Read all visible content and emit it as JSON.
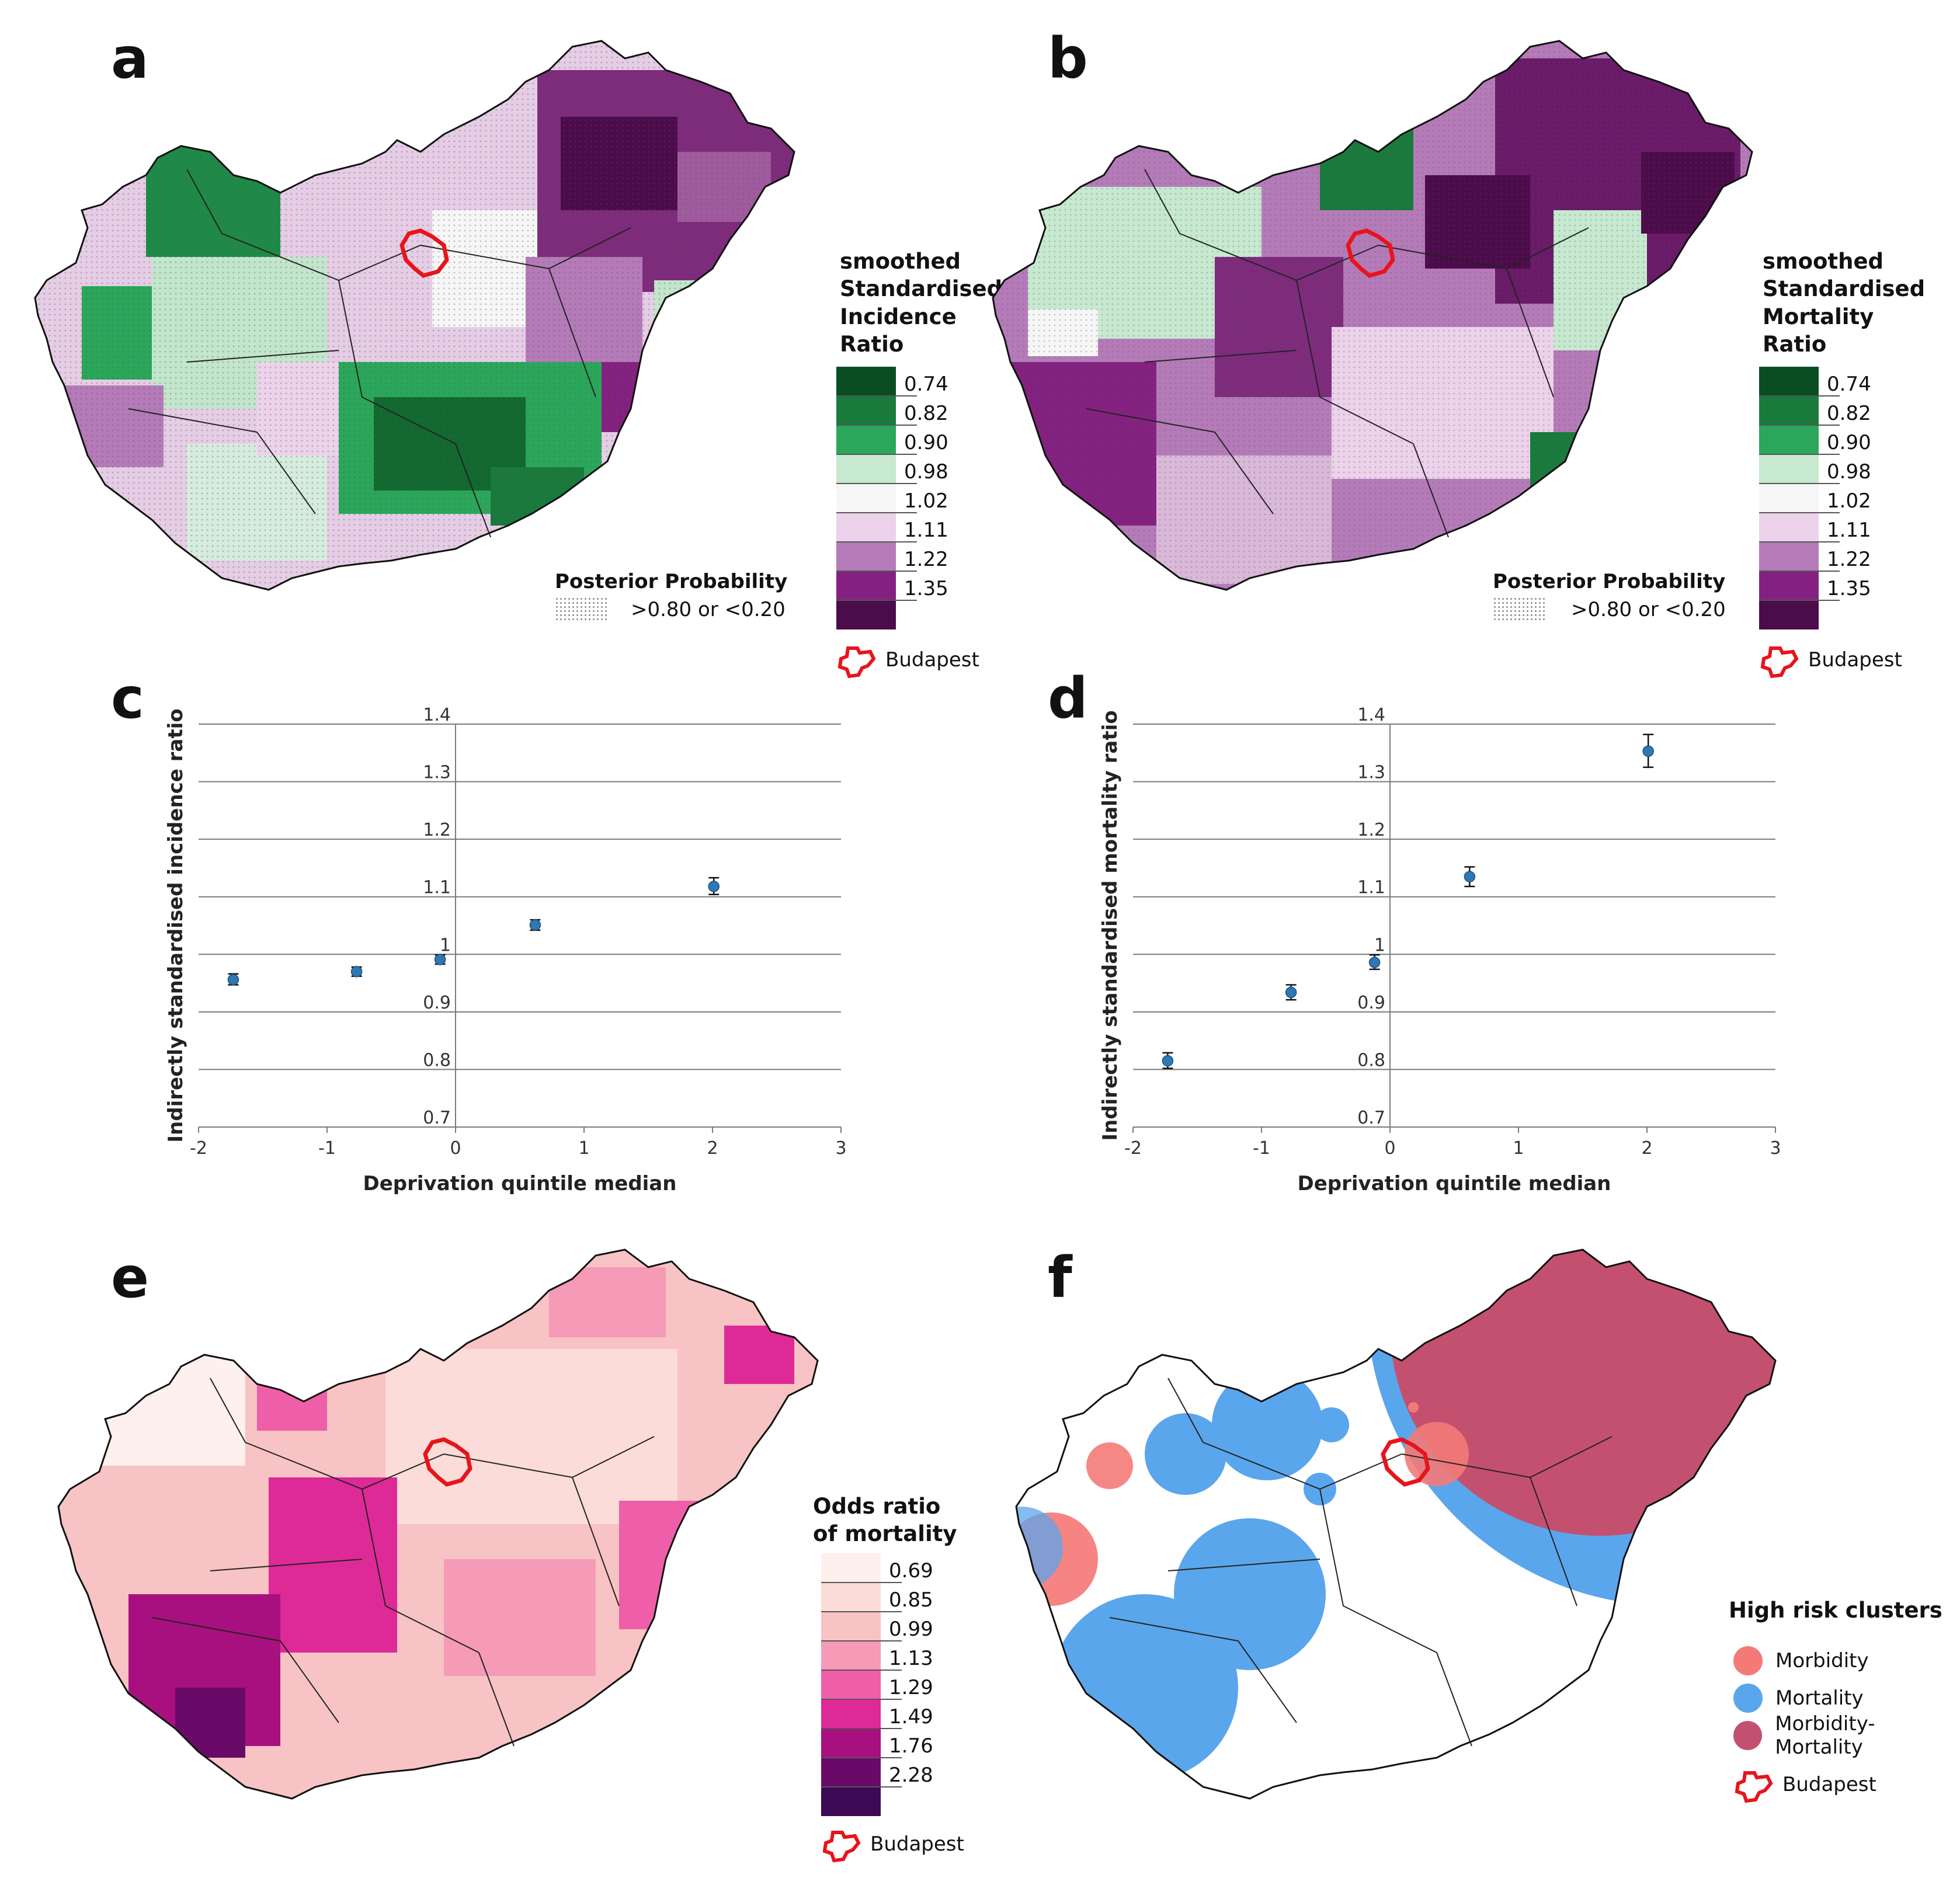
{
  "panels": {
    "a": {
      "label": "a",
      "legend_title": [
        "smoothed",
        "Standardised",
        "Incidence",
        "Ratio"
      ],
      "legend_ticks": [
        "0.74",
        "0.82",
        "0.90",
        "0.98",
        "1.02",
        "1.11",
        "1.22",
        "1.35"
      ],
      "legend_colors": [
        "#0b4d23",
        "#1a7a3c",
        "#2aa75a",
        "#c6e9cf",
        "#f6f6f6",
        "#ecd2ea",
        "#b47bb8",
        "#842180",
        "#4c0b4a"
      ],
      "posterior_title": "Posterior Probability",
      "posterior_value": ">0.80 or <0.20",
      "budapest": "Budapest"
    },
    "b": {
      "label": "b",
      "legend_title": [
        "smoothed",
        "Standardised",
        "Mortality",
        "Ratio"
      ],
      "legend_ticks": [
        "0.74",
        "0.82",
        "0.90",
        "0.98",
        "1.02",
        "1.11",
        "1.22",
        "1.35"
      ],
      "legend_colors": [
        "#0b4d23",
        "#1a7a3c",
        "#2aa75a",
        "#c6e9cf",
        "#f6f6f6",
        "#ecd2ea",
        "#b47bb8",
        "#842180",
        "#4c0b4a"
      ],
      "posterior_title": "Posterior Probability",
      "posterior_value": ">0.80 or <0.20",
      "budapest": "Budapest"
    },
    "c": {
      "label": "c"
    },
    "d": {
      "label": "d"
    },
    "e": {
      "label": "e",
      "legend_title": [
        "Odds ratio",
        "of mortality"
      ],
      "legend_ticks": [
        "0.69",
        "0.85",
        "0.99",
        "1.13",
        "1.29",
        "1.49",
        "1.76",
        "2.28"
      ],
      "legend_colors": [
        "#fdf0ed",
        "#fbdcd8",
        "#f8c3c4",
        "#f59ab7",
        "#ef5ea8",
        "#dd2a97",
        "#a8107f",
        "#6a0a68",
        "#3c0a55"
      ],
      "budapest": "Budapest"
    },
    "f": {
      "label": "f",
      "legend_title": "High risk clusters",
      "items": [
        {
          "label": "Morbidity",
          "color": "#f47a78"
        },
        {
          "label": "Mortality",
          "color": "#5aa6ec"
        },
        {
          "label": "Morbidity-Mortality",
          "color": "#c4506f"
        }
      ],
      "budapest": "Budapest"
    }
  },
  "colors": {
    "budapest": "#e8141b",
    "point": "#2e78b5",
    "grid": "#7a7a7a"
  },
  "chart_data": [
    {
      "type": "scatter",
      "panel": "c",
      "xlabel": "Deprivation quintile median",
      "ylabel": "Indirectly standardised incidence ratio",
      "xlim": [
        -2,
        3
      ],
      "ylim": [
        0.7,
        1.4
      ],
      "xticks": [
        "-2",
        "-1",
        "0",
        "1",
        "2",
        "3"
      ],
      "yticks": [
        "0.7",
        "0.8",
        "0.9",
        "1",
        "1.1",
        "1.2",
        "1.3",
        "1.4"
      ],
      "points": [
        {
          "x": -1.73,
          "y": 0.956,
          "lo": 0.947,
          "hi": 0.966
        },
        {
          "x": -0.77,
          "y": 0.97,
          "lo": 0.962,
          "hi": 0.978
        },
        {
          "x": -0.12,
          "y": 0.991,
          "lo": 0.983,
          "hi": 0.999
        },
        {
          "x": 0.62,
          "y": 1.051,
          "lo": 1.042,
          "hi": 1.06
        },
        {
          "x": 2.01,
          "y": 1.118,
          "lo": 1.104,
          "hi": 1.133
        }
      ]
    },
    {
      "type": "scatter",
      "panel": "d",
      "xlabel": "Deprivation quintile median",
      "ylabel": "Indirectly standardised mortality ratio",
      "xlim": [
        -2,
        3
      ],
      "ylim": [
        0.7,
        1.4
      ],
      "xticks": [
        "-2",
        "-1",
        "0",
        "1",
        "2",
        "3"
      ],
      "yticks": [
        "0.7",
        "0.8",
        "0.9",
        "1",
        "1.1",
        "1.2",
        "1.3",
        "1.4"
      ],
      "points": [
        {
          "x": -1.73,
          "y": 0.815,
          "lo": 0.802,
          "hi": 0.829
        },
        {
          "x": -0.77,
          "y": 0.934,
          "lo": 0.921,
          "hi": 0.947
        },
        {
          "x": -0.12,
          "y": 0.986,
          "lo": 0.974,
          "hi": 0.999
        },
        {
          "x": 0.62,
          "y": 1.135,
          "lo": 1.118,
          "hi": 1.152
        },
        {
          "x": 2.01,
          "y": 1.353,
          "lo": 1.325,
          "hi": 1.382
        }
      ]
    }
  ]
}
